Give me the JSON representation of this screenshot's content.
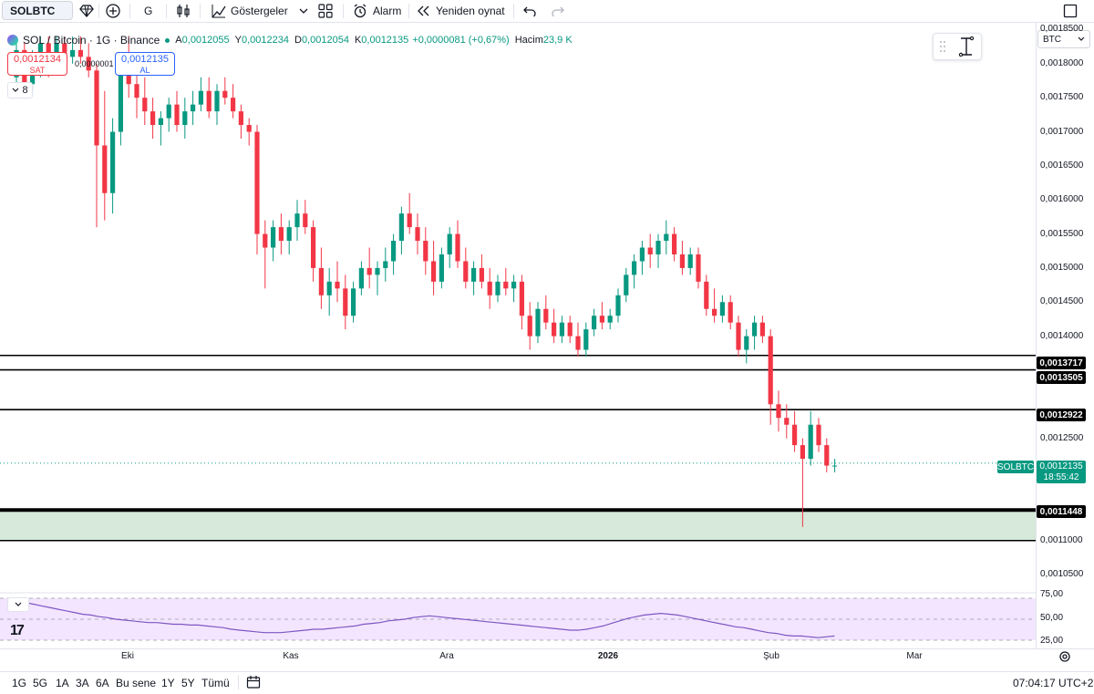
{
  "toolbar": {
    "symbol": "SOLBTC",
    "interval": "G",
    "indicators_label": "Göstergeler",
    "alert_label": "Alarm",
    "replay_label": "Yeniden oynat"
  },
  "legend": {
    "title": "SOL / Bitcoin · 1G · Binance",
    "open_label": "A",
    "open": "0,0012055",
    "high_label": "Y",
    "high": "0,0012234",
    "low_label": "D",
    "low": "0,0012054",
    "close_label": "K",
    "close": "0,0012135",
    "change": "+0,0000081 (+0,67%)",
    "volume_label": "Hacim",
    "volume": "23,9 K",
    "collapse_count": "8"
  },
  "trade": {
    "sell_price": "0,0012134",
    "sell_label": "SAT",
    "spread": "0,0000001",
    "buy_price": "0,0012135",
    "buy_label": "AL"
  },
  "price_axis": {
    "currency": "BTC",
    "ticks": [
      "0,0018500",
      "0,0018000",
      "0,0017500",
      "0,0017000",
      "0,0016500",
      "0,0016000",
      "0,0015500",
      "0,0015000",
      "0,0014500",
      "0,0014000",
      "0,0012500",
      "0,0011000",
      "0,0010500"
    ],
    "levels": [
      "0,0013717",
      "0,0013505",
      "0,0012922",
      "0,0011448"
    ],
    "current_price": "0,0012135",
    "countdown": "18:55:42",
    "symbol_tag": "SOLBTC"
  },
  "rsi_axis": {
    "ticks": [
      "75,00",
      "50,00",
      "25,00"
    ]
  },
  "time_axis": {
    "labels": [
      "Eki",
      "Kas",
      "Ara",
      "2026",
      "Şub",
      "Mar"
    ]
  },
  "bottom_bar": {
    "ranges": [
      "1G",
      "5G",
      "1A",
      "3A",
      "6A",
      "Bu sene",
      "1Y",
      "5Y",
      "Tümü"
    ],
    "clock": "07:04:17 UTC+2"
  },
  "colors": {
    "up": "#089981",
    "down": "#f23645",
    "rsi": "#7e57c2",
    "rsi_bg": "#f3e5ff",
    "zone": "#d6e9da"
  },
  "chart_data": {
    "type": "candlestick",
    "ylim": [
      0.00103,
      0.00186
    ],
    "levels": [
      0.0013717,
      0.0013505,
      0.0012922,
      0.0011448
    ],
    "zone": [
      0.0011,
      0.0011448
    ],
    "current": 0.0012135,
    "candles_ohlc": [
      [
        0.00178,
        0.00184,
        0.00175,
        0.00182
      ],
      [
        0.00182,
        0.00183,
        0.00176,
        0.00177
      ],
      [
        0.00177,
        0.00182,
        0.00176,
        0.00181
      ],
      [
        0.00181,
        0.00184,
        0.00178,
        0.00183
      ],
      [
        0.00183,
        0.00184,
        0.00178,
        0.0018
      ],
      [
        0.0018,
        0.00184,
        0.00179,
        0.00183
      ],
      [
        0.00183,
        0.00184,
        0.00179,
        0.00181
      ],
      [
        0.00181,
        0.00184,
        0.0018,
        0.00182
      ],
      [
        0.00182,
        0.00184,
        0.0018,
        0.00181
      ],
      [
        0.00181,
        0.00183,
        0.00178,
        0.00179
      ],
      [
        0.00179,
        0.0018,
        0.00156,
        0.00168
      ],
      [
        0.00168,
        0.00176,
        0.00157,
        0.00161
      ],
      [
        0.00161,
        0.00172,
        0.00158,
        0.0017
      ],
      [
        0.0017,
        0.00181,
        0.00168,
        0.0018
      ],
      [
        0.0018,
        0.00184,
        0.00175,
        0.00177
      ],
      [
        0.00177,
        0.0018,
        0.00172,
        0.00175
      ],
      [
        0.00175,
        0.00178,
        0.00171,
        0.00173
      ],
      [
        0.00173,
        0.00175,
        0.00169,
        0.00171
      ],
      [
        0.00171,
        0.00173,
        0.00168,
        0.00172
      ],
      [
        0.00172,
        0.00175,
        0.0017,
        0.00174
      ],
      [
        0.00174,
        0.00176,
        0.0017,
        0.00171
      ],
      [
        0.00171,
        0.00175,
        0.00169,
        0.00173
      ],
      [
        0.00173,
        0.00176,
        0.00171,
        0.00174
      ],
      [
        0.00174,
        0.00178,
        0.00173,
        0.00176
      ],
      [
        0.00176,
        0.00178,
        0.00172,
        0.00173
      ],
      [
        0.00173,
        0.00177,
        0.00171,
        0.00176
      ],
      [
        0.00176,
        0.00178,
        0.00174,
        0.00175
      ],
      [
        0.00175,
        0.00177,
        0.00172,
        0.00173
      ],
      [
        0.00173,
        0.00174,
        0.00169,
        0.00171
      ],
      [
        0.00171,
        0.00172,
        0.00168,
        0.0017
      ],
      [
        0.0017,
        0.00171,
        0.00152,
        0.00155
      ],
      [
        0.00155,
        0.00157,
        0.00147,
        0.00153
      ],
      [
        0.00153,
        0.00157,
        0.00151,
        0.00156
      ],
      [
        0.00156,
        0.00158,
        0.00152,
        0.00154
      ],
      [
        0.00154,
        0.00157,
        0.00152,
        0.00156
      ],
      [
        0.00156,
        0.0016,
        0.00154,
        0.00158
      ],
      [
        0.00158,
        0.0016,
        0.00155,
        0.00156
      ],
      [
        0.00156,
        0.00157,
        0.00148,
        0.0015
      ],
      [
        0.0015,
        0.00153,
        0.00144,
        0.00146
      ],
      [
        0.00146,
        0.0015,
        0.00143,
        0.00148
      ],
      [
        0.00148,
        0.00151,
        0.00145,
        0.00147
      ],
      [
        0.00147,
        0.00149,
        0.00141,
        0.00143
      ],
      [
        0.00143,
        0.00148,
        0.00142,
        0.00147
      ],
      [
        0.00147,
        0.00151,
        0.00146,
        0.0015
      ],
      [
        0.0015,
        0.00153,
        0.00147,
        0.00149
      ],
      [
        0.00149,
        0.00151,
        0.00146,
        0.0015
      ],
      [
        0.0015,
        0.00153,
        0.00148,
        0.00151
      ],
      [
        0.00151,
        0.00155,
        0.00149,
        0.00154
      ],
      [
        0.00154,
        0.00159,
        0.00152,
        0.00158
      ],
      [
        0.00158,
        0.00161,
        0.00155,
        0.00156
      ],
      [
        0.00156,
        0.00158,
        0.00152,
        0.00154
      ],
      [
        0.00154,
        0.00156,
        0.00149,
        0.00151
      ],
      [
        0.00151,
        0.00154,
        0.00146,
        0.00148
      ],
      [
        0.00148,
        0.00153,
        0.00147,
        0.00152
      ],
      [
        0.00152,
        0.00156,
        0.0015,
        0.00155
      ],
      [
        0.00155,
        0.00157,
        0.0015,
        0.00151
      ],
      [
        0.00151,
        0.00153,
        0.00147,
        0.00148
      ],
      [
        0.00148,
        0.00151,
        0.00146,
        0.0015
      ],
      [
        0.0015,
        0.00152,
        0.00147,
        0.00148
      ],
      [
        0.00148,
        0.0015,
        0.00144,
        0.00146
      ],
      [
        0.00146,
        0.00149,
        0.00145,
        0.00148
      ],
      [
        0.00148,
        0.0015,
        0.00146,
        0.00147
      ],
      [
        0.00147,
        0.00149,
        0.00145,
        0.00148
      ],
      [
        0.00148,
        0.00149,
        0.00141,
        0.00143
      ],
      [
        0.00143,
        0.00145,
        0.00138,
        0.0014
      ],
      [
        0.0014,
        0.00145,
        0.00139,
        0.00144
      ],
      [
        0.00144,
        0.00146,
        0.00141,
        0.00142
      ],
      [
        0.00142,
        0.00144,
        0.00139,
        0.0014
      ],
      [
        0.0014,
        0.00143,
        0.00139,
        0.00142
      ],
      [
        0.00142,
        0.00143,
        0.00139,
        0.0014
      ],
      [
        0.0014,
        0.00142,
        0.00137,
        0.00138
      ],
      [
        0.00138,
        0.00142,
        0.00137,
        0.00141
      ],
      [
        0.00141,
        0.00144,
        0.0014,
        0.00143
      ],
      [
        0.00143,
        0.00145,
        0.00141,
        0.00142
      ],
      [
        0.00142,
        0.00144,
        0.00141,
        0.00143
      ],
      [
        0.00143,
        0.00147,
        0.00142,
        0.00146
      ],
      [
        0.00146,
        0.0015,
        0.00145,
        0.00149
      ],
      [
        0.00149,
        0.00152,
        0.00147,
        0.00151
      ],
      [
        0.00151,
        0.00154,
        0.00149,
        0.00153
      ],
      [
        0.00153,
        0.00155,
        0.0015,
        0.00152
      ],
      [
        0.00152,
        0.00155,
        0.0015,
        0.00154
      ],
      [
        0.00154,
        0.00157,
        0.00152,
        0.00155
      ],
      [
        0.00155,
        0.00156,
        0.00151,
        0.00152
      ],
      [
        0.00152,
        0.00154,
        0.00149,
        0.0015
      ],
      [
        0.0015,
        0.00153,
        0.00149,
        0.00152
      ],
      [
        0.00152,
        0.00153,
        0.00147,
        0.00148
      ],
      [
        0.00148,
        0.00149,
        0.00143,
        0.00144
      ],
      [
        0.00144,
        0.00147,
        0.00142,
        0.00143
      ],
      [
        0.00143,
        0.00146,
        0.00142,
        0.00145
      ],
      [
        0.00145,
        0.00146,
        0.00141,
        0.00142
      ],
      [
        0.00142,
        0.00143,
        0.00137,
        0.00138
      ],
      [
        0.00138,
        0.00141,
        0.00136,
        0.0014
      ],
      [
        0.0014,
        0.00143,
        0.00138,
        0.00142
      ],
      [
        0.00142,
        0.00143,
        0.00139,
        0.0014
      ],
      [
        0.0014,
        0.00141,
        0.00127,
        0.0013
      ],
      [
        0.0013,
        0.00132,
        0.00126,
        0.00128
      ],
      [
        0.00128,
        0.0013,
        0.00125,
        0.00127
      ],
      [
        0.00127,
        0.00129,
        0.00123,
        0.00124
      ],
      [
        0.00124,
        0.00125,
        0.00112,
        0.00122
      ],
      [
        0.00122,
        0.00129,
        0.00121,
        0.00127
      ],
      [
        0.00127,
        0.00128,
        0.00123,
        0.00124
      ],
      [
        0.00124,
        0.00125,
        0.0012,
        0.00121
      ],
      [
        0.00121,
        0.00122,
        0.0012,
        0.00121
      ]
    ],
    "rsi": [
      74,
      70,
      68,
      66,
      64,
      62,
      60,
      58,
      56,
      55,
      53,
      52,
      50,
      49,
      48,
      47,
      46,
      46,
      45,
      44,
      44,
      43,
      43,
      42,
      41,
      40,
      38,
      37,
      36,
      35,
      34,
      34,
      34,
      35,
      36,
      37,
      38,
      38,
      39,
      40,
      41,
      42,
      44,
      45,
      46,
      48,
      49,
      50,
      52,
      53,
      54,
      53,
      52,
      51,
      50,
      49,
      48,
      47,
      46,
      45,
      44,
      43,
      42,
      41,
      40,
      39,
      38,
      37,
      37,
      38,
      40,
      42,
      45,
      48,
      51,
      53,
      55,
      56,
      57,
      56,
      55,
      53,
      51,
      49,
      47,
      45,
      43,
      41,
      40,
      38,
      36,
      34,
      33,
      31,
      30,
      30,
      29,
      28,
      29,
      30
    ]
  }
}
